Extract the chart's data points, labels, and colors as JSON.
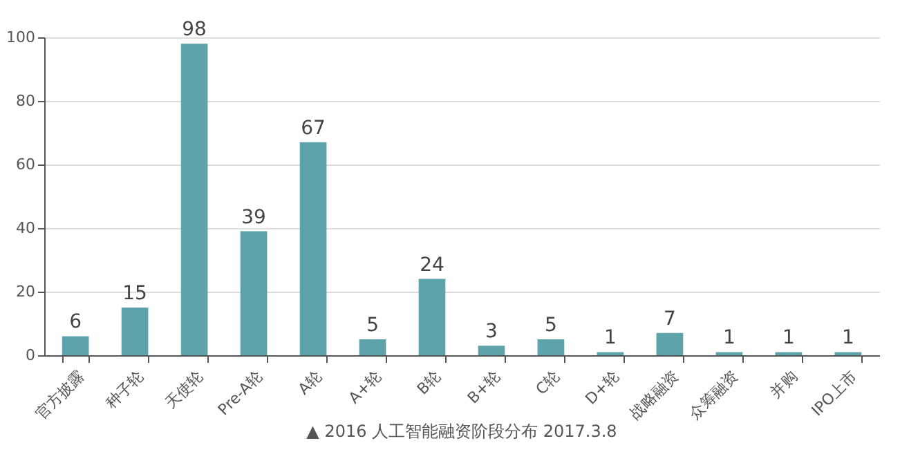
{
  "chart_data": {
    "type": "bar",
    "categories": [
      "官方披露",
      "种子轮",
      "天使轮",
      "Pre-A轮",
      "A轮",
      "A+轮",
      "B轮",
      "B+轮",
      "C轮",
      "D+轮",
      "战略融资",
      "众筹融资",
      "并购",
      "IPO上市"
    ],
    "values": [
      6,
      15,
      98,
      39,
      67,
      5,
      24,
      3,
      5,
      1,
      7,
      1,
      1,
      1
    ],
    "color": "#5ea3a9",
    "ylim": [
      0,
      100
    ],
    "yticks": [
      0,
      20,
      40,
      60,
      80,
      100
    ],
    "grid": "y",
    "data_labels": true,
    "annotations": [
      "▲ 2016 人工智能融资阶段分布 2017.3.8"
    ]
  }
}
